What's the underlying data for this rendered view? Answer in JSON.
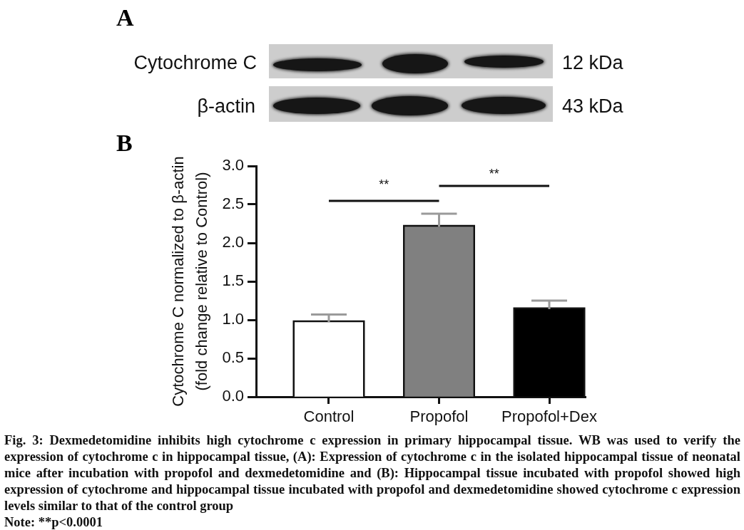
{
  "chart_data": {
    "type": "bar",
    "ylabel": "Cytochrome C normalized to β-actin\n(fold change relative to Control)",
    "categories": [
      "Control",
      "Propofol",
      "Propofol+Dex"
    ],
    "values": [
      0.97,
      2.21,
      1.14
    ],
    "colors": [
      "#ffffff",
      "#808080",
      "#000000"
    ],
    "errors": [
      [
        0.97,
        1.07
      ],
      [
        2.21,
        2.38
      ],
      [
        1.14,
        1.25
      ]
    ],
    "ylim": [
      0,
      3
    ],
    "yticks": [
      {
        "value": 0,
        "label": "0.0"
      },
      0.5,
      {
        "value": 1,
        "label": "1.0"
      },
      1.5,
      {
        "value": 2,
        "label": "2.0"
      },
      2.5,
      {
        "value": 3,
        "label": "3.0"
      }
    ],
    "annotations": [
      "A",
      "Cytochrome C",
      "12 kDa",
      "β-actin",
      "43 kDa",
      "B",
      "**",
      "**",
      "Fig. 3: Dexmedetomidine inhibits high cytochrome c expression in primary hippocampal tissue. WB was used to verify the expression of cytochrome c in hippocampal tissue, (A): Expression of cytochrome c in the isolated hippocampal tissue of neonatal mice after incubation with propofol and dexmedetomidine and (B): Hippocampal tissue incubated with propofol showed high expression of cytochrome and hippocampal tissue incubated with propofol and dexmedetomidine showed cytochrome c expression levels similar to that of the control group",
      "Note: **p<0.0001"
    ]
  }
}
